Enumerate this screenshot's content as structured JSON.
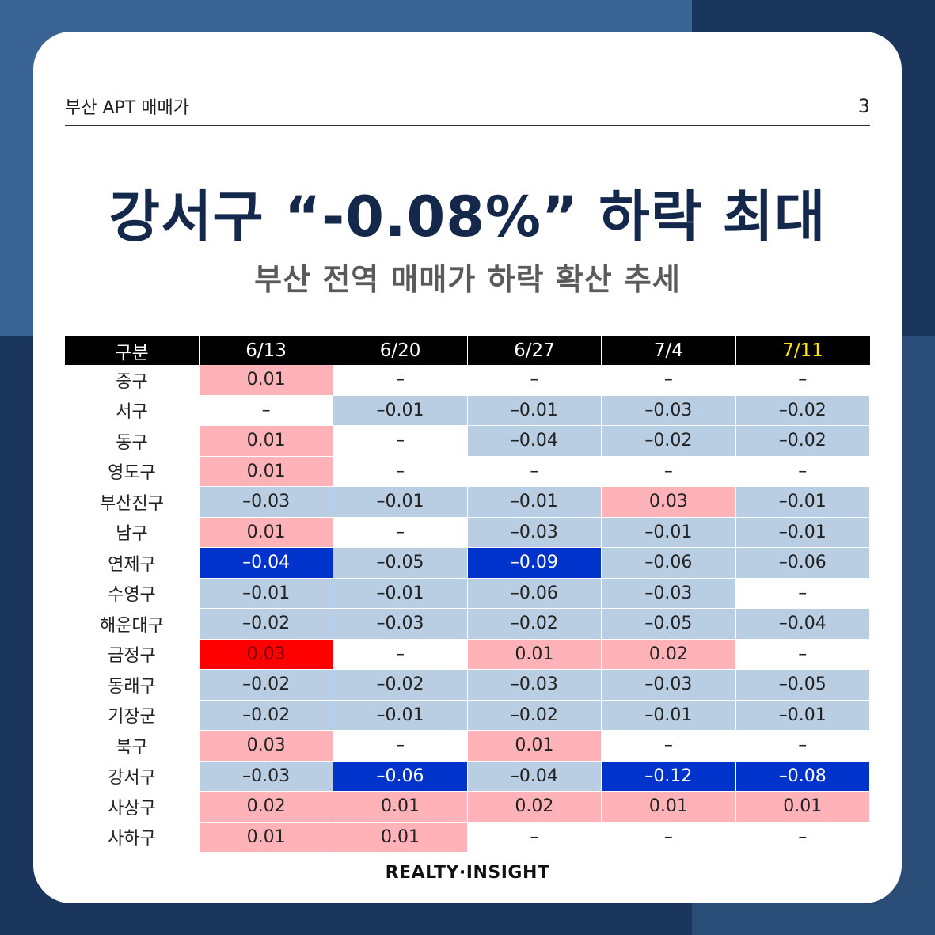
{
  "header": {
    "brand_title": "부산 APT 매매가",
    "page_number": "3"
  },
  "headline": "강서구 “-0.08%” 하락 최대",
  "subheadline": "부산 전역 매매가 하락 확산 추세",
  "table": {
    "columns": [
      "구분",
      "6/13",
      "6/20",
      "6/27",
      "7/4",
      "7/11"
    ],
    "highlight_column_color": "#ffe600",
    "colors": {
      "positive": "#ffb3b8",
      "negative": "#b9cde3",
      "strong_negative": "#0033cc",
      "strong_positive": "#ff0000"
    },
    "rows": [
      {
        "name": "중구",
        "values": [
          "0.01",
          "–",
          "–",
          "–",
          "–"
        ],
        "styles": [
          "pos",
          "none",
          "none",
          "none",
          "none"
        ]
      },
      {
        "name": "서구",
        "values": [
          "–",
          "–0.01",
          "–0.01",
          "–0.03",
          "–0.02"
        ],
        "styles": [
          "none",
          "neg",
          "neg",
          "neg",
          "neg"
        ]
      },
      {
        "name": "동구",
        "values": [
          "0.01",
          "–",
          "–0.04",
          "–0.02",
          "–0.02"
        ],
        "styles": [
          "pos",
          "none",
          "neg",
          "neg",
          "neg"
        ]
      },
      {
        "name": "영도구",
        "values": [
          "0.01",
          "–",
          "–",
          "–",
          "–"
        ],
        "styles": [
          "pos",
          "none",
          "none",
          "none",
          "none"
        ]
      },
      {
        "name": "부산진구",
        "values": [
          "–0.03",
          "–0.01",
          "–0.01",
          "0.03",
          "–0.01"
        ],
        "styles": [
          "neg",
          "neg",
          "neg",
          "pos",
          "neg"
        ]
      },
      {
        "name": "남구",
        "values": [
          "0.01",
          "–",
          "–0.03",
          "–0.01",
          "–0.01"
        ],
        "styles": [
          "pos",
          "none",
          "neg",
          "neg",
          "neg"
        ]
      },
      {
        "name": "연제구",
        "values": [
          "–0.04",
          "–0.05",
          "–0.09",
          "–0.06",
          "–0.06"
        ],
        "styles": [
          "strongneg",
          "neg",
          "strongneg",
          "neg",
          "neg"
        ]
      },
      {
        "name": "수영구",
        "values": [
          "–0.01",
          "–0.01",
          "–0.06",
          "–0.03",
          "–"
        ],
        "styles": [
          "neg",
          "neg",
          "neg",
          "neg",
          "none"
        ]
      },
      {
        "name": "해운대구",
        "values": [
          "–0.02",
          "–0.03",
          "–0.02",
          "–0.05",
          "–0.04"
        ],
        "styles": [
          "neg",
          "neg",
          "neg",
          "neg",
          "neg"
        ]
      },
      {
        "name": "금정구",
        "values": [
          "0.03",
          "–",
          "0.01",
          "0.02",
          "–"
        ],
        "styles": [
          "strongpos",
          "none",
          "pos",
          "pos",
          "none"
        ]
      },
      {
        "name": "동래구",
        "values": [
          "–0.02",
          "–0.02",
          "–0.03",
          "–0.03",
          "–0.05"
        ],
        "styles": [
          "neg",
          "neg",
          "neg",
          "neg",
          "neg"
        ]
      },
      {
        "name": "기장군",
        "values": [
          "–0.02",
          "–0.01",
          "–0.02",
          "–0.01",
          "–0.01"
        ],
        "styles": [
          "neg",
          "neg",
          "neg",
          "neg",
          "neg"
        ]
      },
      {
        "name": "북구",
        "values": [
          "0.03",
          "–",
          "0.01",
          "–",
          "–"
        ],
        "styles": [
          "pos",
          "none",
          "pos",
          "none",
          "none"
        ]
      },
      {
        "name": "강서구",
        "values": [
          "–0.03",
          "–0.06",
          "–0.04",
          "–0.12",
          "–0.08"
        ],
        "styles": [
          "neg",
          "strongneg",
          "neg",
          "strongneg",
          "strongneg"
        ]
      },
      {
        "name": "사상구",
        "values": [
          "0.02",
          "0.01",
          "0.02",
          "0.01",
          "0.01"
        ],
        "styles": [
          "pos",
          "pos",
          "pos",
          "pos",
          "pos"
        ]
      },
      {
        "name": "사하구",
        "values": [
          "0.01",
          "0.01",
          "–",
          "–",
          "–"
        ],
        "styles": [
          "pos",
          "pos",
          "none",
          "none",
          "none"
        ]
      }
    ]
  },
  "footer": {
    "brand": "REALTY·INSIGHT"
  }
}
